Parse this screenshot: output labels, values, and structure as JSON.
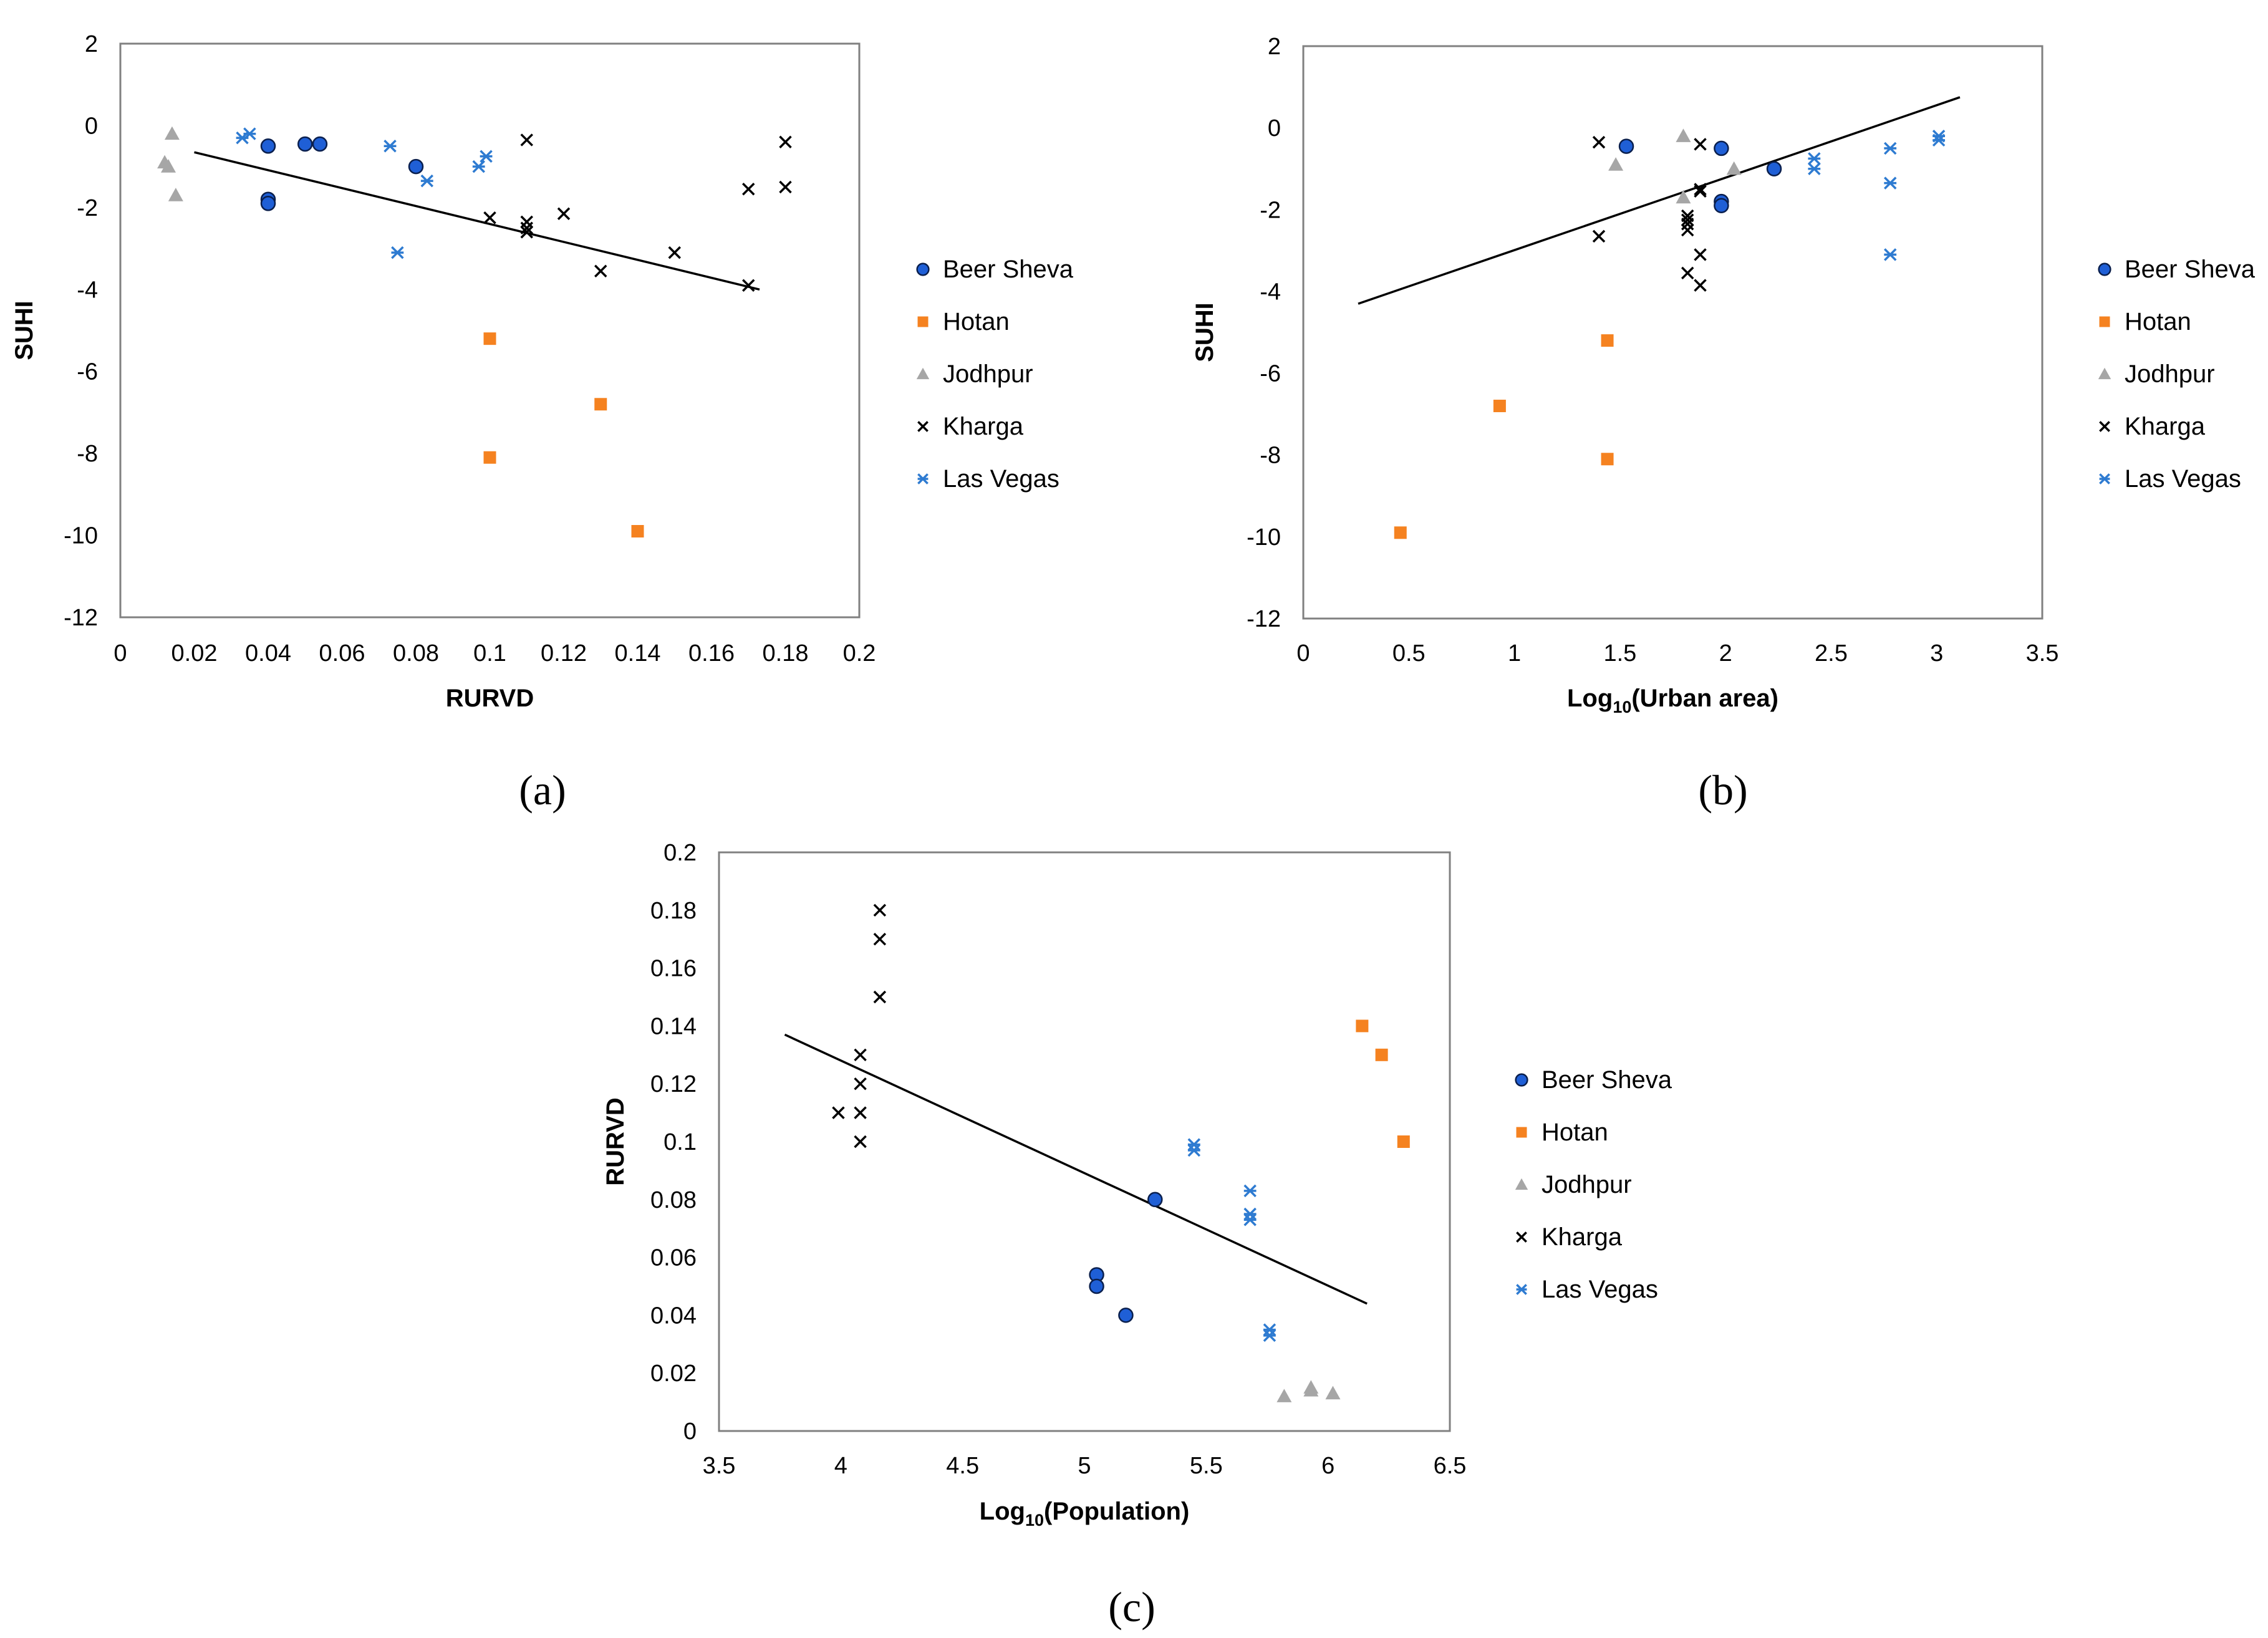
{
  "colors": {
    "beer_sheva": "#1f5fd6",
    "hotan": "#f58220",
    "jodhpur": "#a6a6a6",
    "kharga": "#000000",
    "las_vegas": "#2e7bd1",
    "axis": "#808080",
    "trend": "#000000"
  },
  "chart_data": [
    {
      "id": "a",
      "type": "scatter",
      "title": "",
      "xlabel": "RURVD",
      "ylabel": "SUHI",
      "caption": "(a)",
      "xlim": [
        0,
        0.2
      ],
      "ylim": [
        -12,
        2
      ],
      "xticks": [
        0,
        0.02,
        0.04,
        0.06,
        0.08,
        0.1,
        0.12,
        0.14,
        0.16,
        0.18,
        0.2
      ],
      "xtick_labels": [
        "0",
        "0.02",
        "0.04",
        "0.06",
        "0.08",
        "0.1",
        "0.12",
        "0.14",
        "0.16",
        "0.18",
        "0.2"
      ],
      "yticks": [
        2,
        0,
        -2,
        -4,
        -6,
        -8,
        -10,
        -12
      ],
      "ytick_labels": [
        "2",
        "0",
        "-2",
        "-4",
        "-6",
        "-8",
        "-10",
        "-12"
      ],
      "legend_position": "right",
      "series": [
        {
          "name": "Beer Sheva",
          "marker": "circle",
          "x": [
            0.04,
            0.04,
            0.04,
            0.05,
            0.054,
            0.08
          ],
          "y": [
            -0.5,
            -1.8,
            -1.9,
            -0.45,
            -0.45,
            -1.0
          ]
        },
        {
          "name": "Hotan",
          "marker": "square",
          "x": [
            0.1,
            0.1,
            0.13,
            0.14
          ],
          "y": [
            -5.2,
            -8.1,
            -6.8,
            -9.9
          ]
        },
        {
          "name": "Jodhpur",
          "marker": "triangle",
          "x": [
            0.012,
            0.013,
            0.014,
            0.015
          ],
          "y": [
            -0.9,
            -1.0,
            -0.2,
            -1.7
          ]
        },
        {
          "name": "Kharga",
          "marker": "x",
          "x": [
            0.1,
            0.11,
            0.11,
            0.11,
            0.11,
            0.12,
            0.13,
            0.15,
            0.17,
            0.17,
            0.18,
            0.18
          ],
          "y": [
            -2.25,
            -0.35,
            -2.35,
            -2.5,
            -2.6,
            -2.15,
            -3.55,
            -3.1,
            -1.55,
            -3.9,
            -0.4,
            -1.5
          ]
        },
        {
          "name": "Las Vegas",
          "marker": "asterisk",
          "x": [
            0.033,
            0.035,
            0.073,
            0.075,
            0.083,
            0.097,
            0.099
          ],
          "y": [
            -0.3,
            -0.2,
            -0.5,
            -3.1,
            -1.35,
            -1.0,
            -0.75
          ]
        }
      ],
      "trendline": {
        "x": [
          0.02,
          0.173
        ],
        "y": [
          -0.65,
          -4.0
        ]
      }
    },
    {
      "id": "b",
      "type": "scatter",
      "title": "",
      "xlabel_main": "Log",
      "xlabel_sub": "10",
      "xlabel_rest": "(Urban area)",
      "ylabel": "SUHI",
      "caption": "(b)",
      "xlim": [
        0,
        3.5
      ],
      "ylim": [
        -12,
        2
      ],
      "xticks": [
        0,
        0.5,
        1,
        1.5,
        2,
        2.5,
        3,
        3.5
      ],
      "xtick_labels": [
        "0",
        "0.5",
        "1",
        "1.5",
        "2",
        "2.5",
        "3",
        "3.5"
      ],
      "yticks": [
        2,
        0,
        -2,
        -4,
        -6,
        -8,
        -10,
        -12
      ],
      "ytick_labels": [
        "2",
        "0",
        "-2",
        "-4",
        "-6",
        "-8",
        "-10",
        "-12"
      ],
      "legend_position": "right",
      "series": [
        {
          "name": "Beer Sheva",
          "marker": "circle",
          "x": [
            1.53,
            1.98,
            1.98,
            1.98,
            2.23
          ],
          "y": [
            -0.45,
            -0.5,
            -1.8,
            -1.9,
            -1.0
          ]
        },
        {
          "name": "Hotan",
          "marker": "square",
          "x": [
            0.46,
            0.93,
            1.44,
            1.44
          ],
          "y": [
            -9.9,
            -6.8,
            -5.2,
            -8.1
          ]
        },
        {
          "name": "Jodhpur",
          "marker": "triangle",
          "x": [
            1.48,
            1.8,
            1.8,
            2.04
          ],
          "y": [
            -0.9,
            -0.2,
            -1.7,
            -1.0
          ]
        },
        {
          "name": "Kharga",
          "marker": "x",
          "x": [
            1.4,
            1.4,
            1.82,
            1.82,
            1.82,
            1.82,
            1.82,
            1.88,
            1.88,
            1.88,
            1.88,
            1.88
          ],
          "y": [
            -0.35,
            -2.65,
            -2.15,
            -2.25,
            -2.35,
            -2.5,
            -3.55,
            -0.4,
            -1.5,
            -1.55,
            -3.1,
            -3.85
          ]
        },
        {
          "name": "Las Vegas",
          "marker": "asterisk",
          "x": [
            2.42,
            2.42,
            2.78,
            2.78,
            2.78,
            3.01,
            3.01
          ],
          "y": [
            -0.75,
            -1.0,
            -0.5,
            -1.35,
            -3.1,
            -0.2,
            -0.3
          ]
        }
      ],
      "trendline": {
        "x": [
          0.26,
          3.11
        ],
        "y": [
          -4.3,
          0.75
        ]
      }
    },
    {
      "id": "c",
      "type": "scatter",
      "title": "",
      "xlabel_main": "Log",
      "xlabel_sub": "10",
      "xlabel_rest": "(Population)",
      "ylabel": "RURVD",
      "caption": "(c)",
      "xlim": [
        3.5,
        6.5
      ],
      "ylim": [
        0,
        0.2
      ],
      "xticks": [
        3.5,
        4,
        4.5,
        5,
        5.5,
        6,
        6.5
      ],
      "xtick_labels": [
        "3.5",
        "4",
        "4.5",
        "5",
        "5.5",
        "6",
        "6.5"
      ],
      "yticks": [
        0.2,
        0.18,
        0.16,
        0.14,
        0.12,
        0.1,
        0.08,
        0.06,
        0.04,
        0.02,
        0
      ],
      "ytick_labels": [
        "0.2",
        "0.18",
        "0.16",
        "0.14",
        "0.12",
        "0.1",
        "0.08",
        "0.06",
        "0.04",
        "0.02",
        "0"
      ],
      "legend_position": "right",
      "series": [
        {
          "name": "Beer Sheva",
          "marker": "circle",
          "x": [
            5.05,
            5.05,
            5.17,
            5.29
          ],
          "y": [
            0.054,
            0.05,
            0.04,
            0.08
          ]
        },
        {
          "name": "Hotan",
          "marker": "square",
          "x": [
            6.14,
            6.22,
            6.31
          ],
          "y": [
            0.14,
            0.13,
            0.1
          ]
        },
        {
          "name": "Jodhpur",
          "marker": "triangle",
          "x": [
            5.82,
            5.93,
            5.93,
            6.02
          ],
          "y": [
            0.012,
            0.014,
            0.015,
            0.013
          ]
        },
        {
          "name": "Kharga",
          "marker": "x",
          "x": [
            3.99,
            4.08,
            4.08,
            4.08,
            4.08,
            4.16,
            4.16,
            4.16
          ],
          "y": [
            0.11,
            0.1,
            0.11,
            0.12,
            0.13,
            0.15,
            0.17,
            0.18
          ]
        },
        {
          "name": "Las Vegas",
          "marker": "asterisk",
          "x": [
            5.45,
            5.45,
            5.68,
            5.68,
            5.68,
            5.76,
            5.76
          ],
          "y": [
            0.097,
            0.099,
            0.073,
            0.075,
            0.083,
            0.033,
            0.035
          ]
        }
      ],
      "trendline": {
        "x": [
          3.77,
          6.16
        ],
        "y": [
          0.137,
          0.044
        ]
      }
    }
  ]
}
